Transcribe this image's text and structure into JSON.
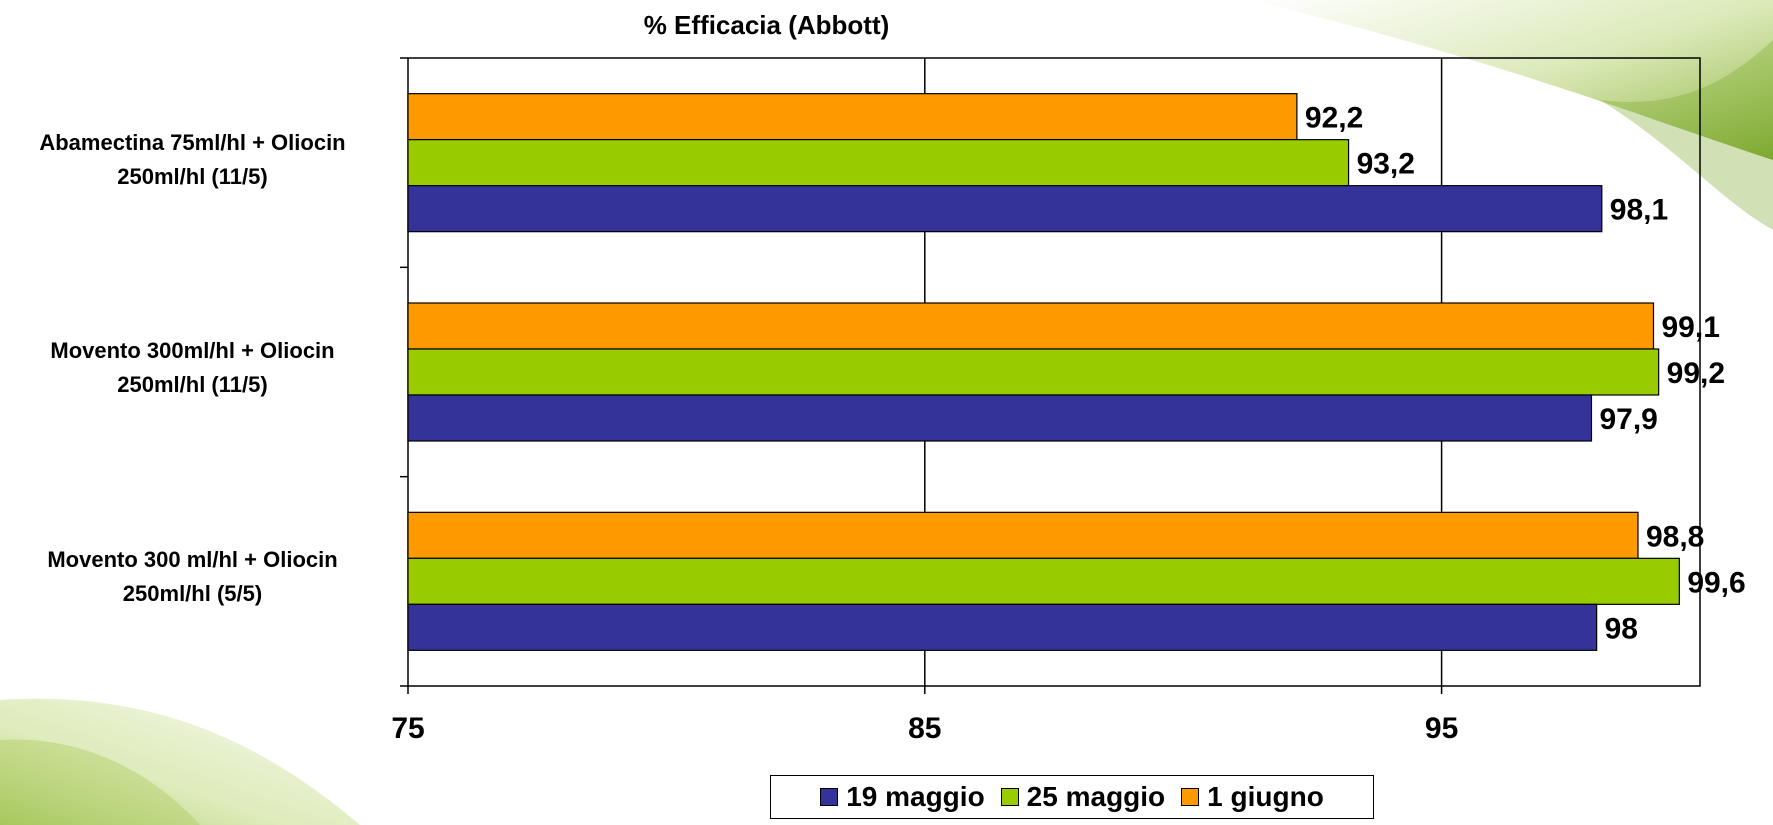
{
  "chart_data": {
    "type": "bar",
    "orientation": "horizontal",
    "title": "% Efficacia (Abbott)",
    "categories": [
      [
        "Abamectina 75ml/hl + Oliocin",
        "250ml/hl (11/5)"
      ],
      [
        "Movento 300ml/hl + Oliocin",
        "250ml/hl (11/5)"
      ],
      [
        "Movento 300 ml/hl + Oliocin",
        "250ml/hl (5/5)"
      ]
    ],
    "series": [
      {
        "name": "19 maggio",
        "color": "#333399",
        "values": [
          98.1,
          97.9,
          98
        ],
        "labels": [
          "98,1",
          "97,9",
          "98"
        ]
      },
      {
        "name": "25 maggio",
        "color": "#99CC00",
        "values": [
          93.2,
          99.2,
          99.6
        ],
        "labels": [
          "93,2",
          "99,2",
          "99,6"
        ]
      },
      {
        "name": "1 giugno",
        "color": "#FF9900",
        "values": [
          92.2,
          99.1,
          98.8
        ],
        "labels": [
          "92,2",
          "99,1",
          "98,8"
        ]
      }
    ],
    "xlim": [
      75,
      100
    ],
    "xticks": [
      "75",
      "85",
      "95"
    ],
    "xtick_values": [
      75,
      85,
      95
    ],
    "grid": true,
    "legend_position": "bottom"
  }
}
